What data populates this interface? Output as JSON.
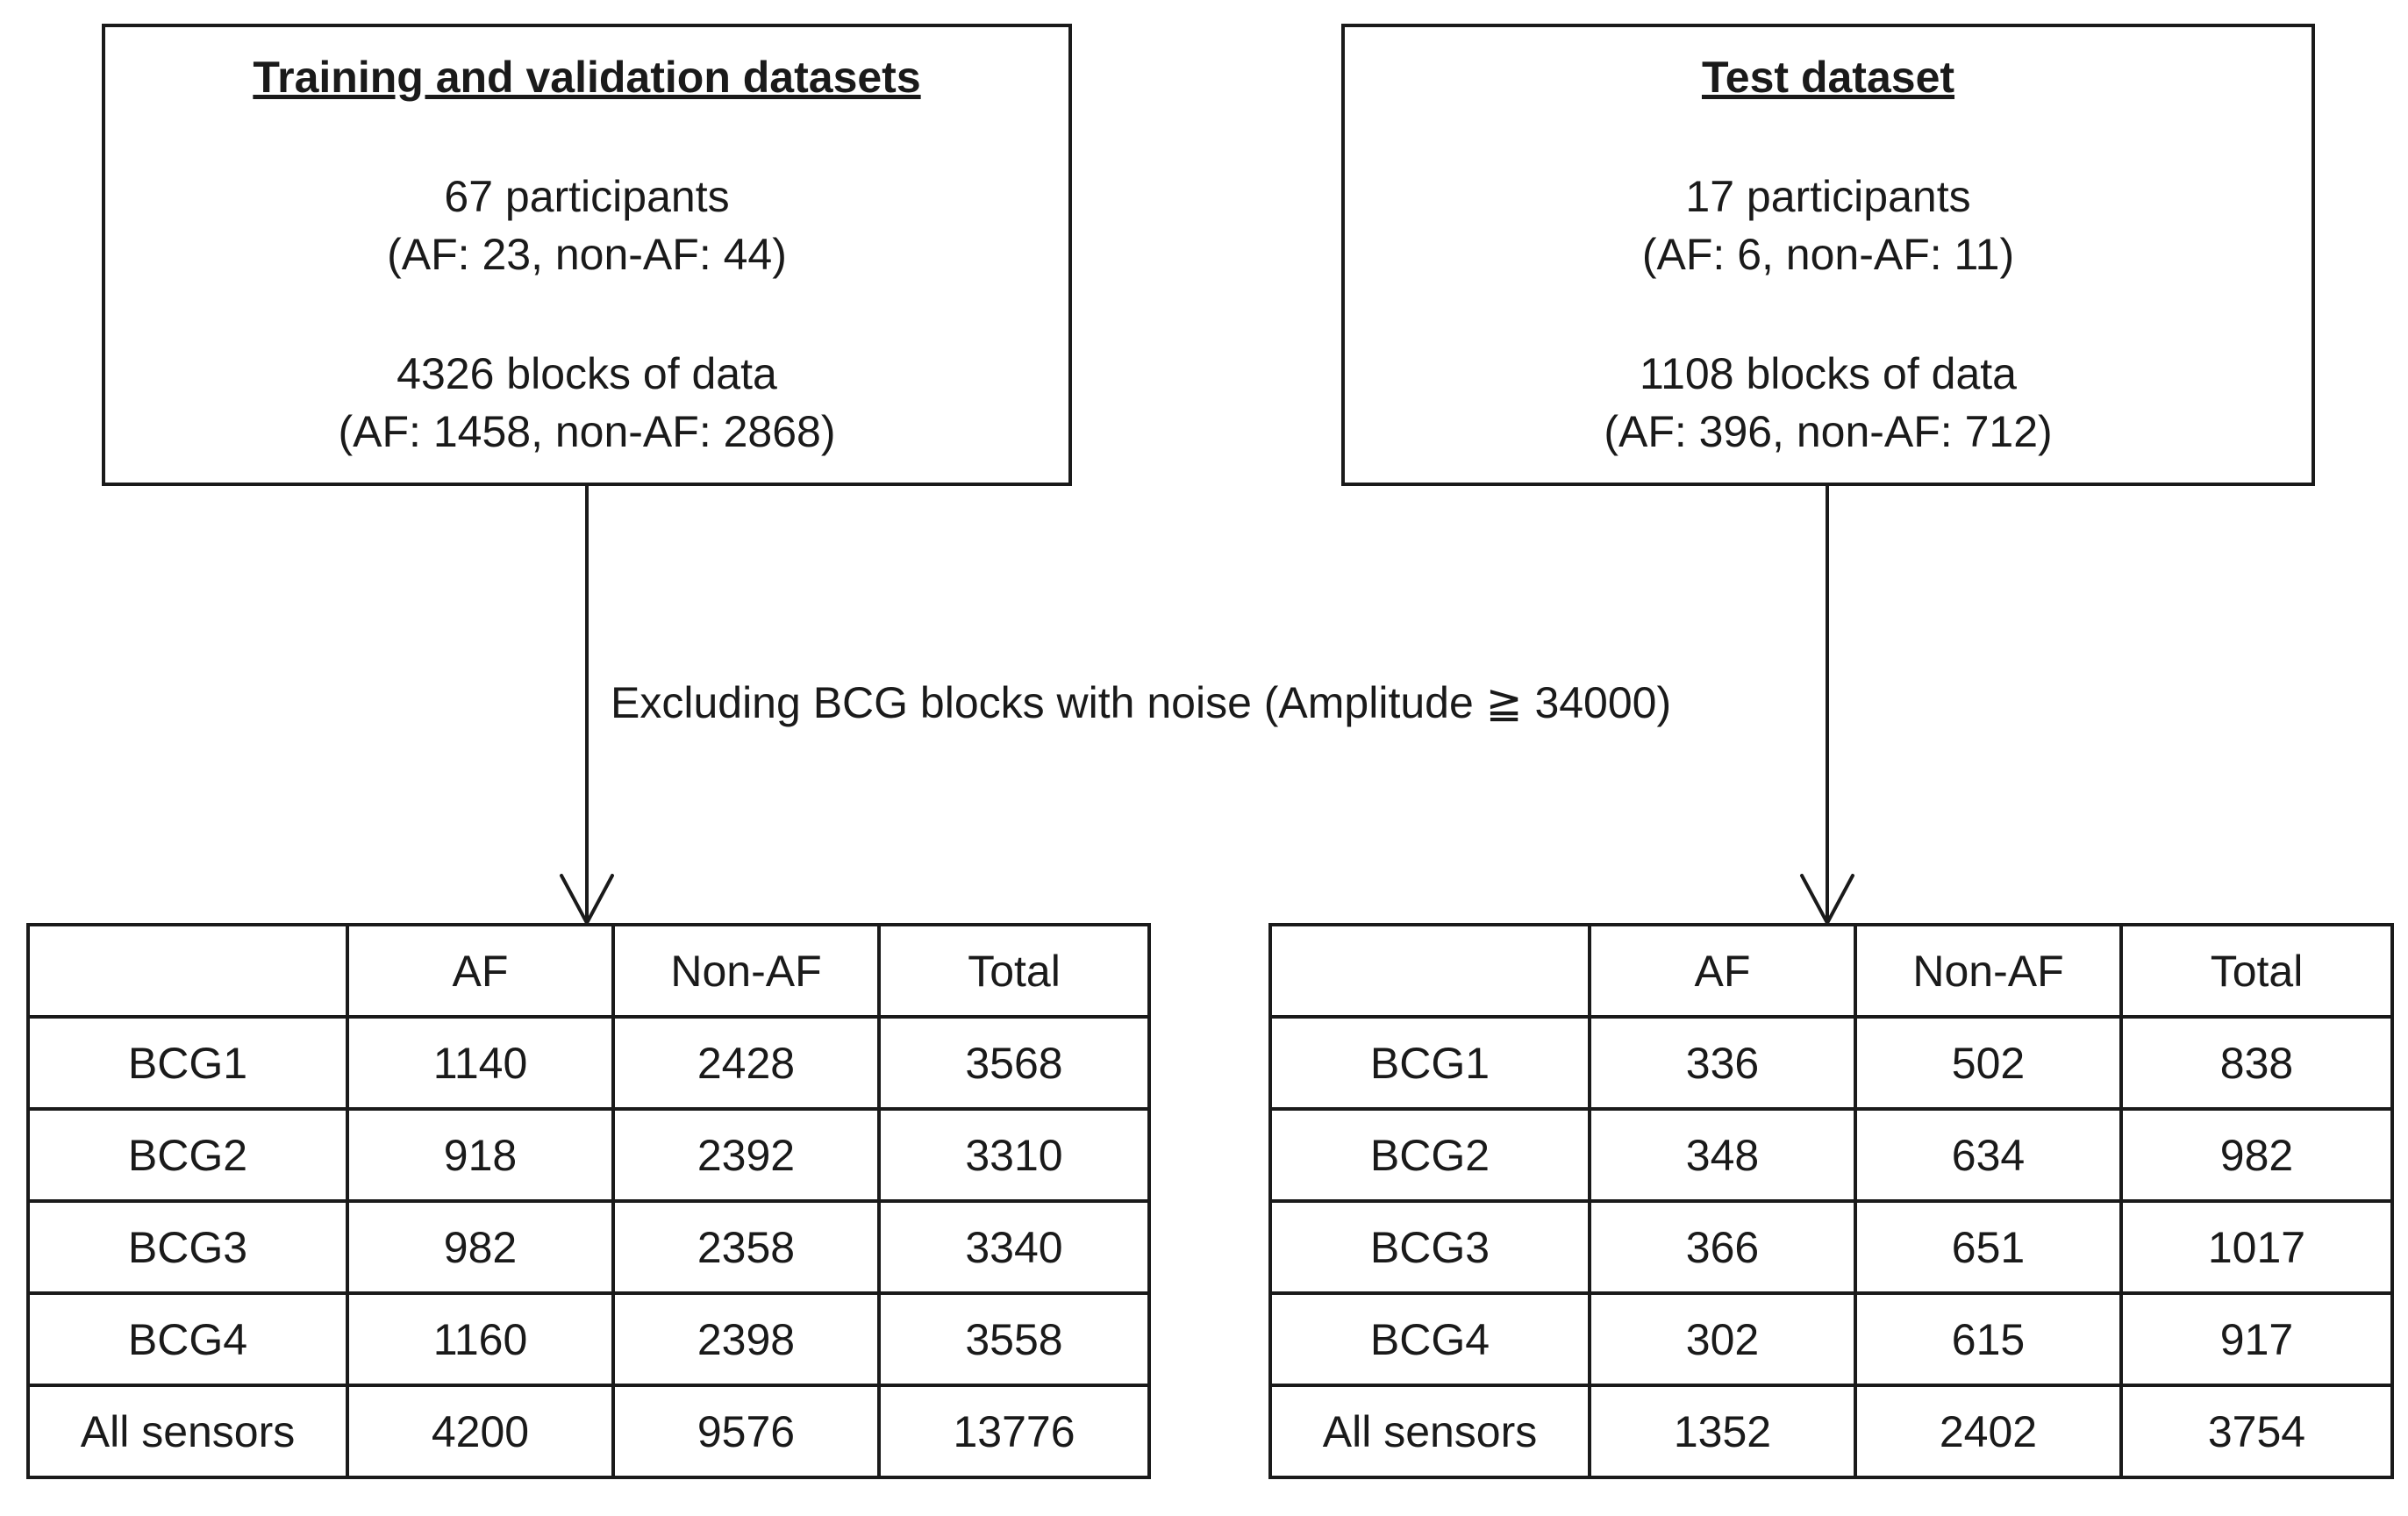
{
  "left_box": {
    "title": "Training and validation datasets",
    "participants": "67 participants",
    "participants_split": "(AF: 23, non-AF: 44)",
    "blocks": "4326 blocks of data",
    "blocks_split": "(AF: 1458, non-AF: 2868)"
  },
  "right_box": {
    "title": "Test dataset",
    "participants": "17 participants",
    "participants_split": "(AF: 6, non-AF: 11)",
    "blocks": "1108 blocks of data",
    "blocks_split": "(AF: 396, non-AF: 712)"
  },
  "edge_label": "Excluding BCG blocks with noise (Amplitude ≧ 34000)",
  "left_table": {
    "header": [
      "",
      "AF",
      "Non-AF",
      "Total"
    ],
    "rows": [
      [
        "BCG1",
        "1140",
        "2428",
        "3568"
      ],
      [
        "BCG2",
        "918",
        "2392",
        "3310"
      ],
      [
        "BCG3",
        "982",
        "2358",
        "3340"
      ],
      [
        "BCG4",
        "1160",
        "2398",
        "3558"
      ],
      [
        "All sensors",
        "4200",
        "9576",
        "13776"
      ]
    ]
  },
  "right_table": {
    "header": [
      "",
      "AF",
      "Non-AF",
      "Total"
    ],
    "rows": [
      [
        "BCG1",
        "336",
        "502",
        "838"
      ],
      [
        "BCG2",
        "348",
        "634",
        "982"
      ],
      [
        "BCG3",
        "366",
        "651",
        "1017"
      ],
      [
        "BCG4",
        "302",
        "615",
        "917"
      ],
      [
        "All sensors",
        "1352",
        "2402",
        "3754"
      ]
    ]
  }
}
